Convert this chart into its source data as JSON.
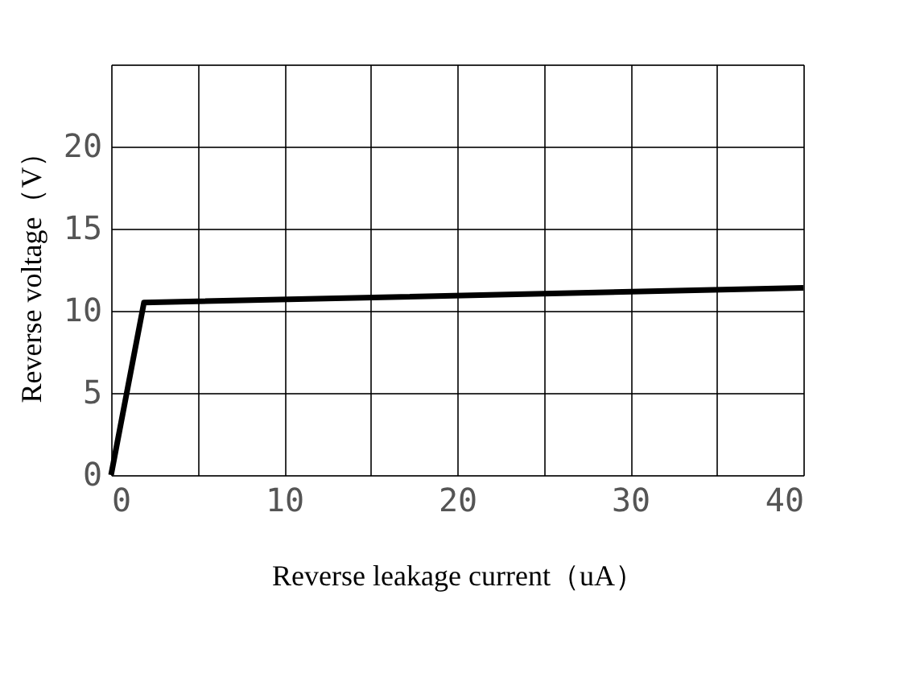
{
  "chart_data": {
    "type": "line",
    "xlabel": "Reverse leakage current（uA）",
    "ylabel": "Reverse voltage（V）",
    "x": [
      0,
      1.9,
      40
    ],
    "series": [
      {
        "color": "#000000",
        "values": [
          0,
          10.5,
          11.4
        ]
      }
    ],
    "xlim": [
      0,
      40
    ],
    "ylim": [
      0,
      25
    ],
    "xticks": [
      0,
      {
        "value": 5,
        "label": null
      },
      10,
      {
        "value": 15,
        "label": null
      },
      20,
      {
        "value": 25,
        "label": null
      },
      30,
      {
        "value": 35,
        "label": null
      },
      40
    ],
    "yticks": [
      0,
      5,
      10,
      15,
      20,
      {
        "value": 25,
        "label": null
      }
    ],
    "grid": true,
    "marker": "none",
    "line_style": "solid"
  }
}
